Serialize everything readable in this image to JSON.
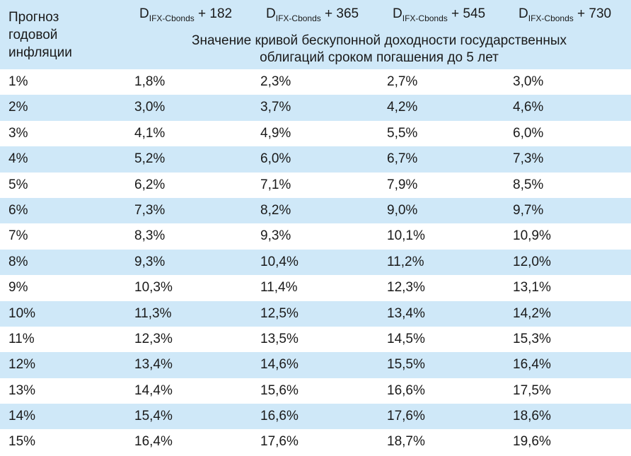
{
  "table": {
    "header": {
      "inflation_label": [
        "Прогноз",
        "годовой",
        "инфляции"
      ],
      "columns": [
        {
          "base": "D",
          "sub": "IFX-Cbonds",
          "suffix": " + 182"
        },
        {
          "base": "D",
          "sub": "IFX-Cbonds",
          "suffix": " + 365"
        },
        {
          "base": "D",
          "sub": "IFX-Cbonds",
          "suffix": " + 545"
        },
        {
          "base": "D",
          "sub": "IFX-Cbonds",
          "suffix": " + 730"
        }
      ],
      "note_line1": "Значение кривой бескупонной доходности государственных",
      "note_line2": "облигаций сроком погашения до 5 лет"
    },
    "rows": [
      [
        "1%",
        "1,8%",
        "2,3%",
        "2,7%",
        "3,0%"
      ],
      [
        "2%",
        "3,0%",
        "3,7%",
        "4,2%",
        "4,6%"
      ],
      [
        "3%",
        "4,1%",
        "4,9%",
        "5,5%",
        "6,0%"
      ],
      [
        "4%",
        "5,2%",
        "6,0%",
        "6,7%",
        "7,3%"
      ],
      [
        "5%",
        "6,2%",
        "7,1%",
        "7,9%",
        "8,5%"
      ],
      [
        "6%",
        "7,3%",
        "8,2%",
        "9,0%",
        "9,7%"
      ],
      [
        "7%",
        "8,3%",
        "9,3%",
        "10,1%",
        "10,9%"
      ],
      [
        "8%",
        "9,3%",
        "10,4%",
        "11,2%",
        "12,0%"
      ],
      [
        "9%",
        "10,3%",
        "11,4%",
        "12,3%",
        "13,1%"
      ],
      [
        "10%",
        "11,3%",
        "12,5%",
        "13,4%",
        "14,2%"
      ],
      [
        "11%",
        "12,3%",
        "13,5%",
        "14,5%",
        "15,3%"
      ],
      [
        "12%",
        "13,4%",
        "14,6%",
        "15,5%",
        "16,4%"
      ],
      [
        "13%",
        "14,4%",
        "15,6%",
        "16,6%",
        "17,5%"
      ],
      [
        "14%",
        "15,4%",
        "16,6%",
        "17,6%",
        "18,6%"
      ],
      [
        "15%",
        "16,4%",
        "17,6%",
        "18,7%",
        "19,6%"
      ]
    ]
  },
  "colors": {
    "stripe": "#cfe8f8",
    "background": "#ffffff",
    "text": "#1a1a1a"
  }
}
